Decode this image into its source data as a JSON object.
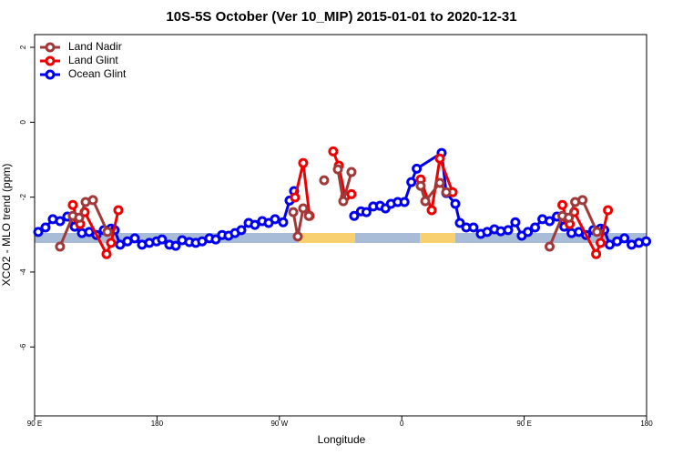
{
  "chart_data": {
    "type": "line",
    "title": "10S-5S October (Ver 10_MIP)   2015-01-01 to 2020-12-31",
    "x_label": "Longitude",
    "y_label": "XCO2 - MLO trend (ppm)",
    "xlim": [
      90,
      540
    ],
    "ylim": [
      -7.84,
      2.34
    ],
    "xticks": [
      {
        "value": 90,
        "label": "90 E"
      },
      180,
      {
        "value": 270,
        "label": "90 W"
      },
      {
        "value": 360,
        "label": "0"
      },
      {
        "value": 450,
        "label": "90 E"
      },
      {
        "value": 540,
        "label": "180"
      }
    ],
    "yticks": [
      2,
      0,
      -2,
      -4,
      -6
    ],
    "legend": "top-left",
    "series": [
      {
        "name": "Land Nadir",
        "color": "#a03a3a",
        "x": [
          108.7,
          118.1,
          122.8,
          127.5,
          132.9,
          143.6,
          null,
          280.2,
          283.5,
          287.5,
          291.6,
          null,
          302.9,
          null,
          313,
          317,
          323,
          null,
          373.9,
          377.3,
          388,
          392.7,
          null,
          468.7,
          478.1,
          482.8,
          487.5,
          492.9,
          503.6
        ],
        "values": [
          -3.32,
          -2.5,
          -2.55,
          -2.13,
          -2.08,
          -2.93,
          null,
          -2.4,
          -3.05,
          -2.3,
          -2.5,
          null,
          -1.55,
          null,
          -1.26,
          -2.11,
          -1.33,
          null,
          -1.7,
          -2.11,
          -1.62,
          -1.87,
          null,
          -3.32,
          -2.5,
          -2.55,
          -2.13,
          -2.08,
          -2.93
        ]
      },
      {
        "name": "Land Glint",
        "color": "#ee0000",
        "x": [
          118.1,
          120.8,
          123.5,
          126.8,
          142.9,
          146.2,
          151.6,
          null,
          281.5,
          287.5,
          292.2,
          null,
          309.6,
          313.7,
          318.3,
          323,
          null,
          373.9,
          382,
          388,
          397.4,
          null,
          478.1,
          480.8,
          483.5,
          486.8,
          502.9,
          506.2,
          511.6
        ],
        "values": [
          -2.21,
          -2.55,
          -2.72,
          -2.4,
          -3.52,
          -3.22,
          -2.35,
          null,
          -2.01,
          -1.09,
          -2.5,
          null,
          -0.78,
          -1.16,
          -1.99,
          -1.92,
          null,
          -1.53,
          -2.35,
          -0.97,
          -1.87,
          null,
          -2.21,
          -2.55,
          -2.72,
          -2.4,
          -3.52,
          -3.22,
          -2.35
        ]
      },
      {
        "name": "Ocean Glint",
        "color": "#0000ee",
        "x": [
          92.7,
          98,
          103.4,
          108.7,
          114.1,
          119.5,
          124.8,
          130.2,
          135.5,
          140.9,
          146.2,
          148.9,
          152.9,
          158.3,
          163.7,
          169,
          174.4,
          179.7,
          183.7,
          189.1,
          193.8,
          198.5,
          203.8,
          208.5,
          213.2,
          218.6,
          223.2,
          227.9,
          232.6,
          237.3,
          242,
          247.4,
          252,
          257.4,
          262.1,
          266.8,
          272.8,
          277.5,
          280.8,
          null,
          325,
          330,
          334,
          339,
          344,
          348,
          352,
          357,
          362,
          367,
          371,
          389.3,
          392.7,
          399.4,
          402.7,
          407.4,
          412.7,
          418.1,
          422.8,
          428.1,
          432.8,
          438.2,
          443.5,
          448.2,
          452.7,
          458,
          463.4,
          468.7,
          474.1,
          479.5,
          484.8,
          490.2,
          495.5,
          500.9,
          506.2,
          508.9,
          512.9,
          518.3,
          523.7,
          529,
          534.4,
          539.7
        ],
        "values": [
          -2.93,
          -2.81,
          -2.59,
          -2.64,
          -2.52,
          -2.79,
          -2.96,
          -2.93,
          -3.01,
          -2.88,
          -2.84,
          -2.88,
          -3.27,
          -3.18,
          -3.1,
          -3.27,
          -3.22,
          -3.18,
          -3.13,
          -3.27,
          -3.3,
          -3.15,
          -3.2,
          -3.22,
          -3.18,
          -3.1,
          -3.13,
          -3.01,
          -3.03,
          -2.96,
          -2.88,
          -2.69,
          -2.74,
          -2.64,
          -2.69,
          -2.59,
          -2.67,
          -2.09,
          -1.84,
          null,
          -2.5,
          -2.38,
          -2.4,
          -2.25,
          -2.23,
          -2.3,
          -2.18,
          -2.13,
          -2.13,
          -1.6,
          -1.24,
          -0.82,
          -1.89,
          -2.18,
          -2.69,
          -2.81,
          -2.81,
          -2.98,
          -2.93,
          -2.86,
          -2.91,
          -2.88,
          -2.67,
          -3.03,
          -2.93,
          -2.81,
          -2.59,
          -2.64,
          -2.52,
          -2.79,
          -2.96,
          -2.93,
          -3.01,
          -2.88,
          -2.84,
          -2.88,
          -3.27,
          -3.18,
          -3.1,
          -3.27,
          -3.22,
          -3.18
        ]
      }
    ]
  }
}
